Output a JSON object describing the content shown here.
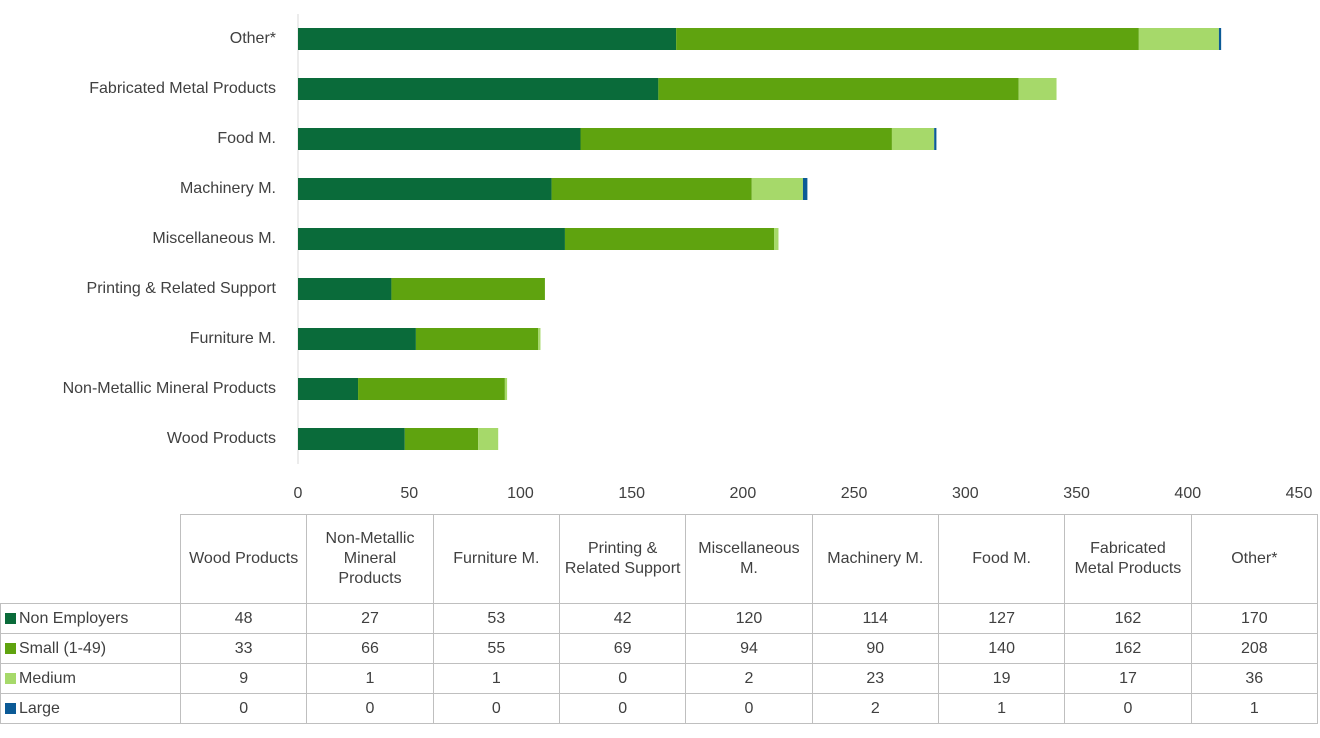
{
  "chart_data": {
    "type": "stacked_bar_horizontal",
    "categories": [
      "Wood Products",
      "Non-Metallic Mineral Products",
      "Furniture M.",
      "Printing & Related Support",
      "Miscellaneous M.",
      "Machinery M.",
      "Food M.",
      "Fabricated Metal Products",
      "Other*"
    ],
    "series": [
      {
        "name": "Non Employers",
        "color": "#0a6b3a",
        "values": [
          48,
          27,
          53,
          42,
          120,
          114,
          127,
          162,
          170
        ]
      },
      {
        "name": "Small (1-49)",
        "color": "#5fa30f",
        "values": [
          33,
          66,
          55,
          69,
          94,
          90,
          140,
          162,
          208
        ]
      },
      {
        "name": "Medium",
        "color": "#a6d96a",
        "values": [
          9,
          1,
          1,
          0,
          2,
          23,
          19,
          17,
          36
        ]
      },
      {
        "name": "Large",
        "color": "#0b5a96",
        "values": [
          0,
          0,
          0,
          0,
          0,
          2,
          1,
          0,
          1
        ]
      }
    ],
    "xlim": [
      0,
      450
    ],
    "xticks": [
      0,
      50,
      100,
      150,
      200,
      250,
      300,
      350,
      400,
      450
    ]
  }
}
